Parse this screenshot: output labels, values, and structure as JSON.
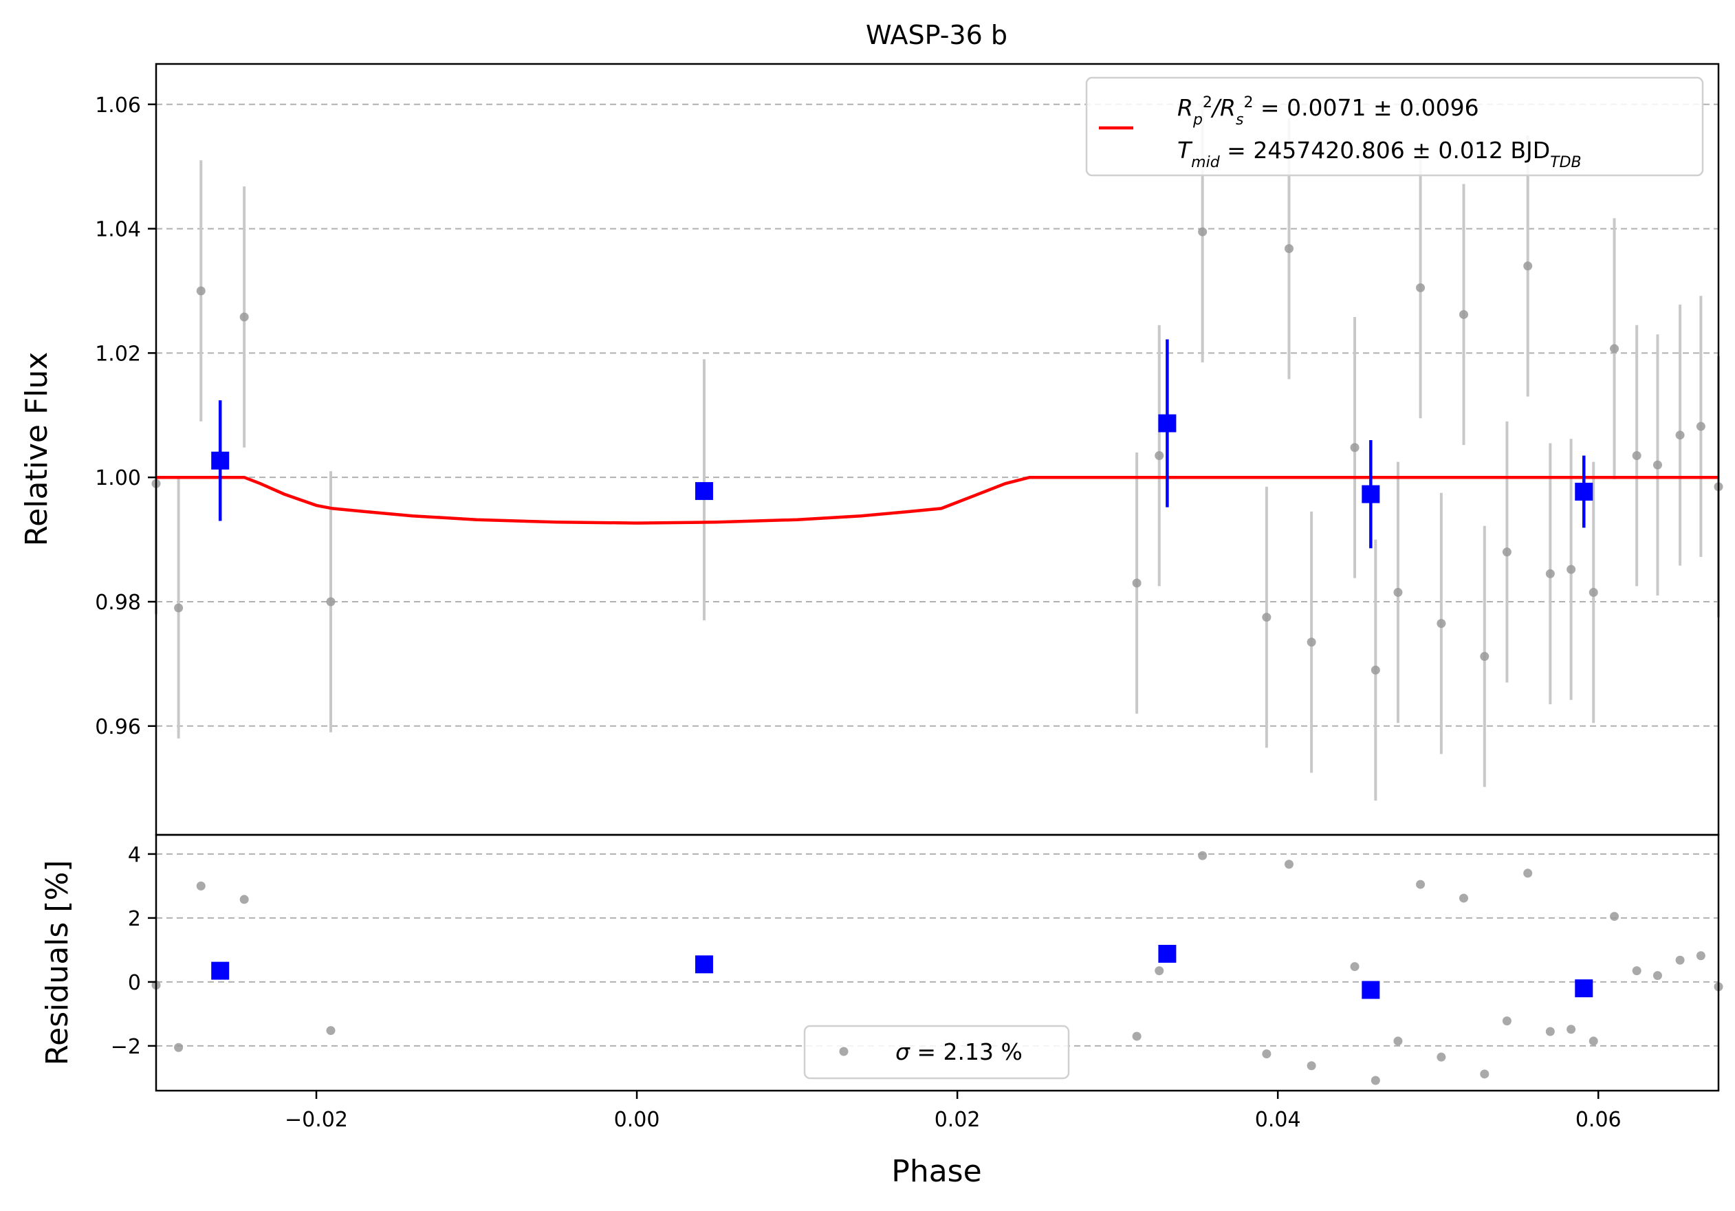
{
  "chart_data": {
    "type": "scatter",
    "title": "WASP-36 b",
    "xlabel": "Phase",
    "xlim": [
      -0.03,
      0.0675
    ],
    "x_ticks": [
      -0.02,
      0.0,
      0.02,
      0.04,
      0.06
    ],
    "x_tick_labels": [
      "−0.02",
      "0.00",
      "0.02",
      "0.04",
      "0.06"
    ],
    "top_panel": {
      "ylabel": "Relative Flux",
      "ylim": [
        0.9425,
        1.0665
      ],
      "y_ticks": [
        0.96,
        0.98,
        1.0,
        1.02,
        1.04,
        1.06
      ],
      "y_tick_labels": [
        "0.96",
        "0.98",
        "1.00",
        "1.02",
        "1.04",
        "1.06"
      ],
      "grid": "horizontal dashed",
      "raw_points": [
        {
          "x": -0.03,
          "y": 0.999,
          "err": 0.021
        },
        {
          "x": -0.0286,
          "y": 0.979,
          "err": 0.021
        },
        {
          "x": -0.0272,
          "y": 1.03,
          "err": 0.021
        },
        {
          "x": -0.0245,
          "y": 1.0258,
          "err": 0.021
        },
        {
          "x": -0.0191,
          "y": 0.98,
          "err": 0.021
        },
        {
          "x": 0.0042,
          "y": 0.998,
          "err": 0.021
        },
        {
          "x": 0.0312,
          "y": 0.983,
          "err": 0.021
        },
        {
          "x": 0.0326,
          "y": 1.0035,
          "err": 0.021
        },
        {
          "x": 0.0353,
          "y": 1.0395,
          "err": 0.021
        },
        {
          "x": 0.0393,
          "y": 0.9775,
          "err": 0.021
        },
        {
          "x": 0.0407,
          "y": 1.0368,
          "err": 0.021
        },
        {
          "x": 0.0421,
          "y": 0.9735,
          "err": 0.021
        },
        {
          "x": 0.0448,
          "y": 1.0048,
          "err": 0.021
        },
        {
          "x": 0.0461,
          "y": 0.969,
          "err": 0.021
        },
        {
          "x": 0.0475,
          "y": 0.9815,
          "err": 0.021
        },
        {
          "x": 0.0489,
          "y": 1.0305,
          "err": 0.021
        },
        {
          "x": 0.0502,
          "y": 0.9765,
          "err": 0.021
        },
        {
          "x": 0.0516,
          "y": 1.0262,
          "err": 0.021
        },
        {
          "x": 0.0529,
          "y": 0.9712,
          "err": 0.021
        },
        {
          "x": 0.0543,
          "y": 0.988,
          "err": 0.021
        },
        {
          "x": 0.0556,
          "y": 1.034,
          "err": 0.021
        },
        {
          "x": 0.057,
          "y": 0.9845,
          "err": 0.021
        },
        {
          "x": 0.0583,
          "y": 0.9852,
          "err": 0.021
        },
        {
          "x": 0.0597,
          "y": 0.9815,
          "err": 0.021
        },
        {
          "x": 0.061,
          "y": 1.0207,
          "err": 0.021
        },
        {
          "x": 0.0624,
          "y": 1.0035,
          "err": 0.021
        },
        {
          "x": 0.0637,
          "y": 1.002,
          "err": 0.021
        },
        {
          "x": 0.0651,
          "y": 1.0068,
          "err": 0.021
        },
        {
          "x": 0.0664,
          "y": 1.0082,
          "err": 0.021
        },
        {
          "x": 0.0675,
          "y": 0.9985,
          "err": 0.021
        }
      ],
      "binned_points": [
        {
          "x": -0.026,
          "y": 1.0027,
          "err": 0.0097
        },
        {
          "x": 0.0042,
          "y": 0.9978,
          "err": 0.0
        },
        {
          "x": 0.0331,
          "y": 1.0087,
          "err": 0.0135
        },
        {
          "x": 0.0458,
          "y": 0.9973,
          "err": 0.0087
        },
        {
          "x": 0.0591,
          "y": 0.9977,
          "err": 0.0058
        }
      ],
      "model_curve": [
        [
          -0.03,
          1.0
        ],
        [
          -0.0245,
          1.0
        ],
        [
          -0.0235,
          0.999
        ],
        [
          -0.022,
          0.9973
        ],
        [
          -0.02,
          0.9955
        ],
        [
          -0.019,
          0.995
        ],
        [
          -0.017,
          0.9945
        ],
        [
          -0.014,
          0.9938
        ],
        [
          -0.01,
          0.9932
        ],
        [
          -0.005,
          0.9928
        ],
        [
          0.0,
          0.99265
        ],
        [
          0.005,
          0.9928
        ],
        [
          0.01,
          0.9932
        ],
        [
          0.014,
          0.9938
        ],
        [
          0.017,
          0.9945
        ],
        [
          0.019,
          0.995
        ],
        [
          0.021,
          0.997
        ],
        [
          0.023,
          0.999
        ],
        [
          0.0245,
          1.0
        ],
        [
          0.0675,
          1.0
        ]
      ],
      "legend": {
        "position": "upper right",
        "rp_prefix": "R",
        "rp_sub": "p",
        "rp_sup": "2",
        "rs_prefix": "/R",
        "rs_sub": "s",
        "rs_sup": "2",
        "rp_value": " = 0.0071 ± 0.0096",
        "tmid_prefix": "T",
        "tmid_sub": "mid",
        "tmid_value": " = 2457420.806 ± 0.012 BJD",
        "tmid_unit_sub": "TDB"
      }
    },
    "bottom_panel": {
      "ylabel": "Residuals [%]",
      "ylim": [
        -3.4,
        4.6
      ],
      "y_ticks": [
        -2,
        0,
        2,
        4
      ],
      "y_tick_labels": [
        "−2",
        "0",
        "2",
        "4"
      ],
      "grid": "horizontal dashed",
      "raw_points": [
        {
          "x": -0.03,
          "y": -0.1
        },
        {
          "x": -0.0286,
          "y": -2.05
        },
        {
          "x": -0.0272,
          "y": 3.0
        },
        {
          "x": -0.0245,
          "y": 2.58
        },
        {
          "x": -0.0191,
          "y": -1.52
        },
        {
          "x": 0.0312,
          "y": -1.7
        },
        {
          "x": 0.0326,
          "y": 0.35
        },
        {
          "x": 0.0353,
          "y": 3.95
        },
        {
          "x": 0.0393,
          "y": -2.25
        },
        {
          "x": 0.0407,
          "y": 3.68
        },
        {
          "x": 0.0421,
          "y": -2.62
        },
        {
          "x": 0.0448,
          "y": 0.48
        },
        {
          "x": 0.0461,
          "y": -3.08
        },
        {
          "x": 0.0475,
          "y": -1.85
        },
        {
          "x": 0.0489,
          "y": 3.05
        },
        {
          "x": 0.0502,
          "y": -2.35
        },
        {
          "x": 0.0516,
          "y": 2.62
        },
        {
          "x": 0.0529,
          "y": -2.88
        },
        {
          "x": 0.0543,
          "y": -1.22
        },
        {
          "x": 0.0556,
          "y": 3.4
        },
        {
          "x": 0.057,
          "y": -1.55
        },
        {
          "x": 0.0583,
          "y": -1.48
        },
        {
          "x": 0.0597,
          "y": -1.85
        },
        {
          "x": 0.061,
          "y": 2.05
        },
        {
          "x": 0.0624,
          "y": 0.35
        },
        {
          "x": 0.0637,
          "y": 0.2
        },
        {
          "x": 0.0651,
          "y": 0.68
        },
        {
          "x": 0.0664,
          "y": 0.82
        },
        {
          "x": 0.0675,
          "y": -0.15
        }
      ],
      "binned_points": [
        {
          "x": -0.026,
          "y": 0.35
        },
        {
          "x": 0.0042,
          "y": 0.55
        },
        {
          "x": 0.0331,
          "y": 0.88
        },
        {
          "x": 0.0458,
          "y": -0.25
        },
        {
          "x": 0.0591,
          "y": -0.2
        }
      ],
      "legend": {
        "position": "lower center",
        "sigma_symbol": "σ",
        "sigma_text": " = 2.13 %"
      }
    },
    "colors": {
      "raw_points": "#9a9a9a",
      "raw_errorbars": "#c8c8c8",
      "binned": "#0000ff",
      "model": "#ff0000",
      "grid": "#b0b0b0"
    }
  }
}
